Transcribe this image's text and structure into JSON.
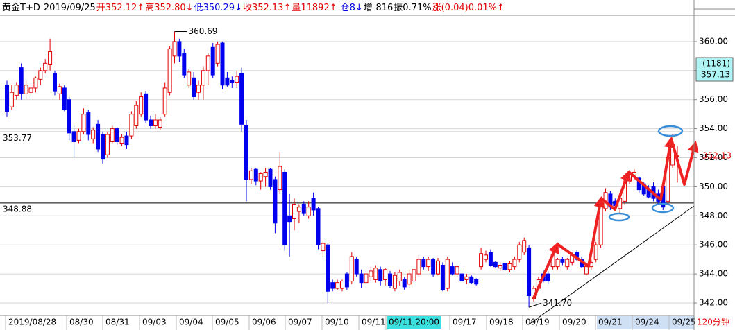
{
  "chart_data": {
    "type": "candlestick",
    "header": [
      {
        "text": "黄金T+D",
        "color": "#000000"
      },
      {
        "text": "2019/09/25",
        "color": "#000000"
      },
      {
        "text": "开352.12↑",
        "color": "#e00000"
      },
      {
        "text": "高352.80↓",
        "color": "#e00000"
      },
      {
        "text": "低350.29↓",
        "color": "#0000e0"
      },
      {
        "text": "收352.13↑",
        "color": "#e00000"
      },
      {
        "text": "量11892↑",
        "color": "#e00000"
      },
      {
        "text": "仓8↓",
        "color": "#0000e0"
      },
      {
        "text": "增-816",
        "color": "#000000"
      },
      {
        "text": "振0.71%",
        "color": "#000000"
      },
      {
        "text": "涨(0.04)0.01%↑",
        "color": "#e00000"
      }
    ],
    "up_color": "#e00000",
    "down_color": "#0000ee",
    "candles": [
      [
        357.0,
        357.3,
        354.8,
        355.2
      ],
      [
        355.5,
        357.0,
        355.3,
        356.5
      ],
      [
        356.3,
        357.2,
        356.0,
        357.0
      ],
      [
        358.2,
        358.5,
        356.0,
        356.4
      ],
      [
        356.4,
        357.3,
        356.0,
        357.0
      ],
      [
        356.5,
        357.0,
        356.3,
        356.8
      ],
      [
        356.8,
        357.6,
        356.5,
        357.5
      ],
      [
        357.4,
        358.2,
        357.0,
        358.0
      ],
      [
        358.0,
        358.8,
        357.8,
        358.5
      ],
      [
        358.4,
        360.2,
        358.0,
        359.3
      ],
      [
        357.8,
        358.0,
        356.3,
        356.6
      ],
      [
        356.4,
        357.1,
        356.0,
        356.9
      ],
      [
        356.8,
        357.0,
        355.2,
        355.3
      ],
      [
        356.0,
        356.2,
        353.2,
        353.7
      ],
      [
        353.8,
        354.2,
        352.0,
        353.1
      ],
      [
        353.2,
        354.0,
        353.0,
        353.8
      ],
      [
        353.8,
        355.4,
        353.6,
        355.0
      ],
      [
        355.1,
        355.3,
        353.2,
        353.6
      ],
      [
        353.3,
        354.1,
        353.0,
        353.9
      ],
      [
        354.3,
        354.6,
        352.4,
        352.6
      ],
      [
        353.6,
        353.8,
        351.6,
        351.9
      ],
      [
        352.2,
        353.8,
        352.0,
        353.6
      ],
      [
        353.1,
        354.2,
        353.0,
        354.0
      ],
      [
        354.0,
        354.1,
        352.9,
        353.1
      ],
      [
        353.0,
        353.6,
        352.8,
        353.4
      ],
      [
        353.5,
        353.8,
        352.6,
        352.9
      ],
      [
        353.5,
        355.2,
        353.3,
        355.0
      ],
      [
        354.2,
        355.9,
        354.0,
        355.6
      ],
      [
        355.0,
        356.5,
        354.8,
        356.2
      ],
      [
        356.4,
        356.6,
        354.4,
        354.6
      ],
      [
        354.6,
        354.9,
        354.0,
        354.2
      ],
      [
        354.2,
        355.0,
        354.0,
        354.6
      ],
      [
        354.1,
        354.8,
        353.9,
        354.6
      ],
      [
        355.0,
        357.2,
        354.8,
        356.8
      ],
      [
        356.5,
        359.7,
        356.3,
        359.5
      ],
      [
        359.0,
        360.69,
        358.5,
        360.0
      ],
      [
        360.0,
        360.2,
        358.6,
        359.0
      ],
      [
        359.2,
        359.5,
        357.5,
        357.7
      ],
      [
        357.0,
        358.1,
        356.8,
        357.9
      ],
      [
        357.5,
        357.9,
        356.0,
        356.2
      ],
      [
        356.5,
        357.3,
        356.0,
        357.0
      ],
      [
        357.0,
        358.3,
        356.0,
        358.0
      ],
      [
        358.0,
        359.2,
        357.0,
        359.0
      ],
      [
        359.6,
        359.9,
        357.5,
        357.7
      ],
      [
        358.5,
        360.0,
        358.3,
        359.8
      ],
      [
        359.9,
        360.0,
        356.7,
        357.0
      ],
      [
        357.5,
        357.9,
        356.9,
        357.0
      ],
      [
        357.3,
        357.6,
        356.8,
        357.2
      ],
      [
        357.2,
        358.0,
        356.8,
        357.6
      ],
      [
        357.8,
        358.2,
        353.8,
        354.3
      ],
      [
        354.2,
        354.6,
        349.0,
        350.5
      ],
      [
        350.5,
        351.3,
        350.2,
        351.1
      ],
      [
        351.2,
        351.3,
        350.1,
        350.4
      ],
      [
        350.4,
        351.0,
        349.8,
        350.9
      ],
      [
        350.7,
        351.3,
        350.0,
        351.0
      ],
      [
        351.2,
        351.3,
        349.8,
        350.0
      ],
      [
        350.5,
        350.7,
        346.8,
        347.5
      ],
      [
        349.8,
        352.4,
        349.5,
        351.4
      ],
      [
        351.0,
        351.2,
        345.6,
        346.0
      ],
      [
        348.0,
        349.5,
        345.2,
        347.6
      ],
      [
        347.8,
        349.2,
        347.0,
        348.8
      ],
      [
        348.3,
        348.8,
        347.5,
        348.6
      ],
      [
        348.8,
        349.0,
        348.0,
        348.2
      ],
      [
        348.0,
        349.0,
        347.8,
        348.6
      ],
      [
        349.2,
        349.6,
        348.0,
        348.4
      ],
      [
        348.5,
        348.6,
        345.7,
        346.0
      ],
      [
        345.6,
        346.3,
        345.2,
        346.1
      ],
      [
        346.0,
        346.1,
        342.0,
        342.8
      ],
      [
        343.4,
        343.6,
        342.8,
        343.0
      ],
      [
        343.0,
        343.6,
        342.9,
        343.4
      ],
      [
        343.0,
        343.6,
        342.8,
        343.5
      ],
      [
        344.0,
        344.1,
        342.9,
        343.1
      ],
      [
        343.5,
        345.5,
        343.3,
        345.2
      ],
      [
        345.0,
        345.2,
        343.8,
        344.0
      ],
      [
        344.0,
        344.3,
        343.0,
        343.4
      ],
      [
        343.4,
        344.2,
        343.2,
        344.0
      ],
      [
        343.8,
        344.5,
        343.5,
        344.2
      ],
      [
        343.6,
        344.6,
        343.4,
        344.4
      ],
      [
        344.3,
        344.5,
        343.2,
        343.5
      ],
      [
        343.6,
        344.4,
        343.2,
        344.3
      ],
      [
        344.0,
        344.2,
        343.0,
        343.2
      ],
      [
        343.0,
        344.1,
        342.8,
        343.9
      ],
      [
        343.5,
        344.3,
        343.2,
        344.1
      ],
      [
        343.6,
        343.8,
        342.9,
        343.1
      ],
      [
        343.3,
        344.3,
        343.0,
        344.0
      ],
      [
        343.5,
        344.5,
        343.2,
        344.3
      ],
      [
        344.0,
        345.3,
        343.8,
        345.0
      ],
      [
        345.0,
        345.2,
        344.3,
        344.5
      ],
      [
        344.5,
        345.2,
        344.2,
        345.0
      ],
      [
        345.0,
        345.1,
        343.8,
        344.0
      ],
      [
        344.0,
        345.1,
        343.9,
        344.9
      ],
      [
        344.6,
        344.8,
        342.8,
        342.9
      ],
      [
        343.0,
        345.2,
        342.8,
        345.0
      ],
      [
        344.5,
        344.8,
        343.9,
        344.0
      ],
      [
        344.0,
        344.6,
        343.8,
        344.5
      ],
      [
        344.0,
        344.3,
        343.4,
        343.5
      ],
      [
        343.6,
        344.0,
        343.3,
        343.8
      ],
      [
        343.8,
        343.9,
        343.3,
        343.4
      ],
      [
        343.6,
        343.7,
        343.2,
        343.3
      ],
      [
        344.5,
        345.8,
        344.3,
        345.4
      ],
      [
        345.0,
        345.6,
        344.8,
        345.3
      ],
      [
        345.5,
        345.7,
        344.5,
        344.6
      ],
      [
        344.8,
        344.9,
        344.4,
        344.5
      ],
      [
        344.4,
        344.8,
        344.2,
        344.6
      ],
      [
        344.7,
        344.8,
        344.2,
        344.3
      ],
      [
        344.3,
        344.9,
        344.1,
        344.7
      ],
      [
        344.5,
        345.2,
        344.3,
        345.0
      ],
      [
        345.0,
        346.2,
        344.8,
        346.0
      ],
      [
        345.5,
        346.5,
        345.3,
        346.3
      ],
      [
        345.8,
        346.0,
        341.7,
        342.5
      ],
      [
        342.3,
        343.2,
        342.1,
        343.0
      ],
      [
        343.0,
        343.8,
        342.9,
        343.6
      ],
      [
        344.0,
        344.3,
        343.4,
        343.5
      ],
      [
        344.0,
        344.2,
        343.3,
        343.5
      ],
      [
        344.5,
        345.5,
        344.3,
        345.3
      ],
      [
        344.5,
        345.1,
        344.3,
        345.0
      ],
      [
        345.0,
        345.2,
        344.6,
        344.8
      ],
      [
        344.5,
        345.1,
        344.3,
        345.0
      ],
      [
        344.8,
        345.5,
        344.6,
        345.3
      ],
      [
        345.5,
        345.6,
        344.9,
        345.0
      ],
      [
        345.0,
        345.2,
        344.4,
        344.5
      ],
      [
        344.0,
        344.6,
        343.9,
        344.5
      ],
      [
        344.5,
        345.0,
        344.3,
        344.8
      ],
      [
        345.0,
        346.2,
        344.8,
        346.0
      ],
      [
        346.0,
        349.2,
        345.8,
        348.8
      ],
      [
        348.5,
        349.9,
        348.3,
        349.6
      ],
      [
        349.5,
        349.7,
        348.4,
        348.6
      ],
      [
        349.0,
        349.2,
        348.5,
        348.7
      ],
      [
        348.5,
        349.4,
        348.2,
        349.2
      ],
      [
        349.0,
        350.6,
        348.8,
        350.4
      ],
      [
        350.4,
        351.1,
        350.2,
        350.9
      ],
      [
        350.8,
        351.2,
        350.5,
        351.0
      ],
      [
        350.6,
        350.7,
        349.6,
        349.8
      ],
      [
        350.2,
        350.3,
        349.4,
        349.5
      ],
      [
        349.8,
        350.1,
        349.2,
        349.3
      ],
      [
        350.0,
        350.3,
        349.0,
        349.2
      ],
      [
        349.5,
        349.8,
        348.8,
        349.0
      ],
      [
        350.0,
        350.2,
        348.4,
        348.6
      ],
      [
        349.0,
        352.3,
        348.8,
        352.0
      ],
      [
        351.5,
        353.6,
        351.3,
        352.9
      ],
      [
        352.12,
        352.8,
        350.29,
        352.13
      ]
    ],
    "high_label": "360.69",
    "low_label": "341.70",
    "hlines": [
      353.77,
      348.88
    ],
    "cursor_box": {
      "count": "(1181)",
      "price": "357.13"
    },
    "x_labels": [
      "2019/08/28",
      "08/30",
      "08/31",
      "09/03",
      "09/04",
      "09/05",
      "09/06",
      "09/07",
      "09/10",
      "09/11",
      "09/11,20:00",
      "09/17",
      "09/18",
      "09/19",
      "09/20",
      "09/21",
      "09/24",
      "09/25"
    ],
    "period": "120分钟",
    "ylim": [
      341.14,
      361.81
    ],
    "yticks": [
      {
        "value": 342,
        "label": "342.00"
      },
      {
        "value": 344,
        "label": "344.00"
      },
      {
        "value": 346,
        "label": "346.00"
      },
      {
        "value": 348,
        "label": "348.00"
      },
      {
        "value": 350,
        "label": "350.00"
      },
      {
        "value": 352,
        "label": "352.00"
      },
      {
        "value": 354,
        "label": "354.00"
      },
      {
        "value": 356,
        "label": "356.00"
      },
      {
        "value": 358,
        "label": "358.00"
      },
      {
        "value": 360,
        "label": "360.00"
      }
    ],
    "grid": true
  }
}
